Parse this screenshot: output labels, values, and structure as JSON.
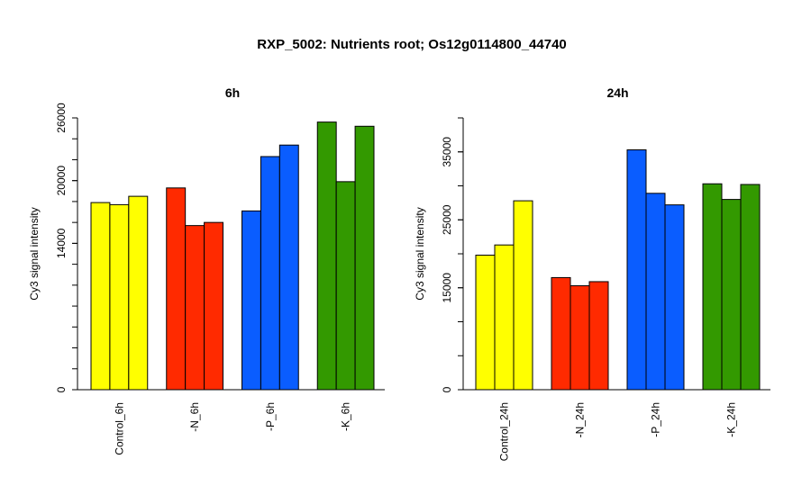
{
  "title": "RXP_5002: Nutrients root; Os12g0114800_44740",
  "chart_data": [
    {
      "type": "bar",
      "title": "6h",
      "ylabel": "Cy3 signal intensity",
      "ylim": [
        0,
        26000
      ],
      "yticks": [
        0,
        14000,
        20000,
        26000
      ],
      "categories": [
        "Control_6h",
        "-N_6h",
        "-P_6h",
        "-K_6h"
      ],
      "group_colors": [
        "#ffff00",
        "#ff2a00",
        "#0a5dff",
        "#339900"
      ],
      "values": [
        [
          17900,
          17700,
          18500
        ],
        [
          19300,
          15700,
          16000
        ],
        [
          17100,
          22300,
          23400
        ],
        [
          25600,
          19900,
          25200
        ]
      ]
    },
    {
      "type": "bar",
      "title": "24h",
      "ylabel": "Cy3 signal intensity",
      "ylim": [
        0,
        40000
      ],
      "yticks": [
        0,
        15000,
        25000,
        35000
      ],
      "categories": [
        "Control_24h",
        "-N_24h",
        "-P_24h",
        "-K_24h"
      ],
      "group_colors": [
        "#ffff00",
        "#ff2a00",
        "#0a5dff",
        "#339900"
      ],
      "values": [
        [
          19800,
          21300,
          27800
        ],
        [
          16500,
          15300,
          15900
        ],
        [
          35300,
          28900,
          27200
        ],
        [
          30300,
          28000,
          30200
        ]
      ]
    }
  ]
}
